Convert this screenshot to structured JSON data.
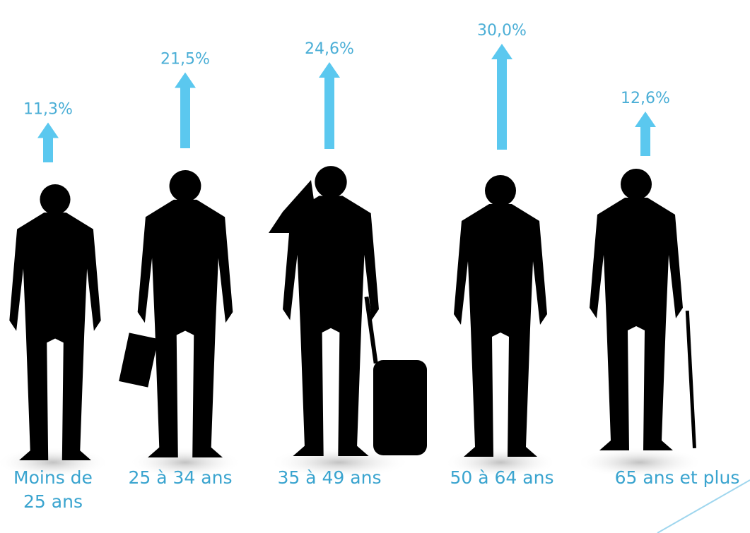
{
  "chart_data": {
    "type": "arrow",
    "categories": [
      "Moins de 25 ans",
      "25 à 34 ans",
      "35 à 49 ans",
      "50 à 64 ans",
      "65 ans et plus"
    ],
    "values": [
      11.3,
      21.5,
      24.6,
      30.0,
      12.6
    ],
    "value_labels": [
      "11,3%",
      "21,5%",
      "24,6%",
      "30,0%",
      "12,6%"
    ],
    "color": "#5bc8ef"
  }
}
